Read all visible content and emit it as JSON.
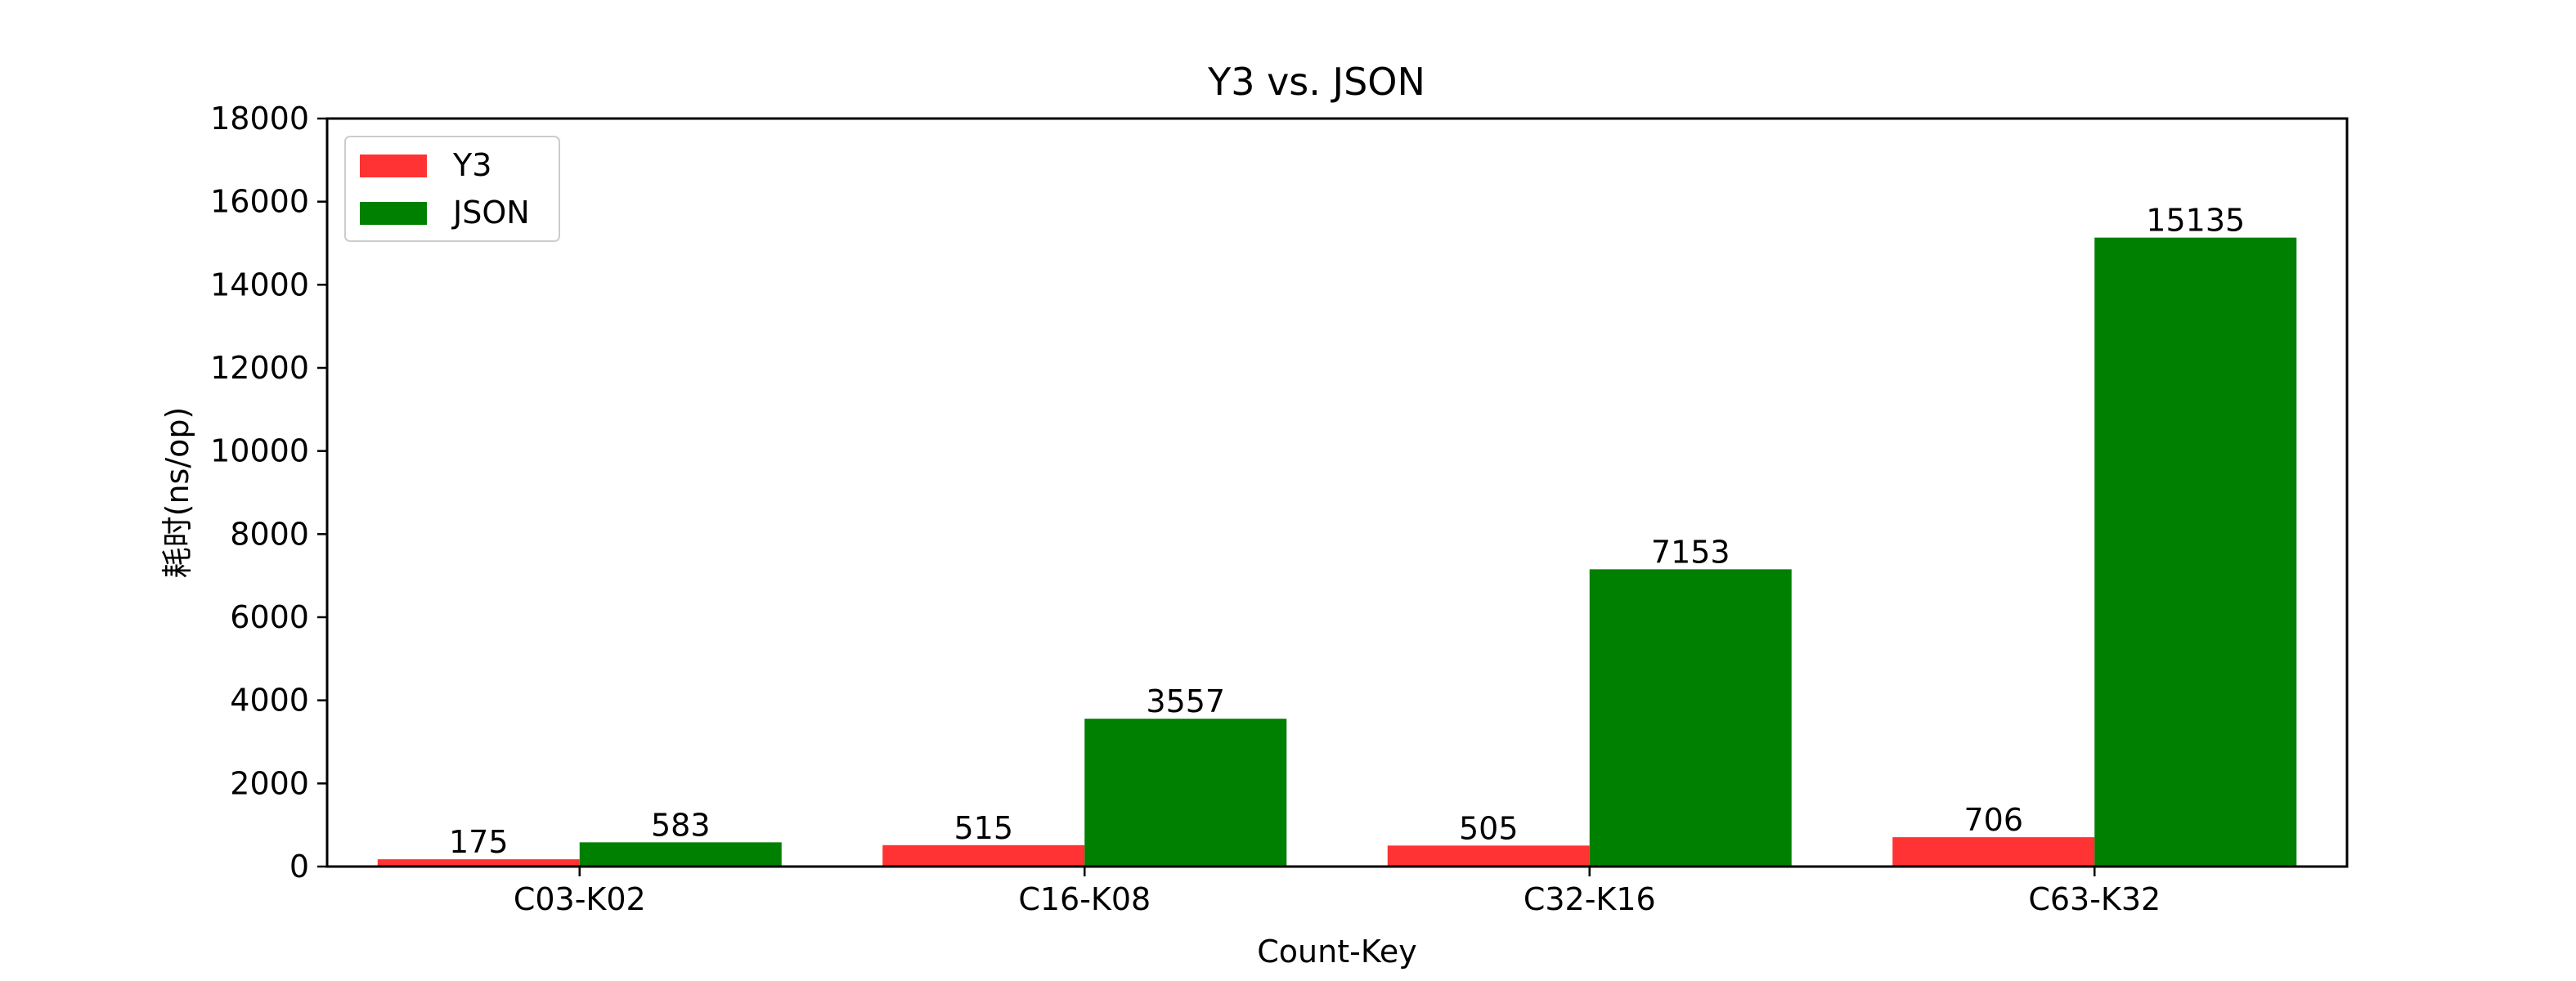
{
  "chart_data": {
    "type": "bar",
    "title": "Y3 vs. JSON",
    "xlabel": "Count-Key",
    "ylabel": "耗时(ns/op)",
    "categories": [
      "C03-K02",
      "C16-K08",
      "C32-K16",
      "C63-K32"
    ],
    "series": [
      {
        "name": "Y3",
        "color": "#ff3333",
        "values": [
          175,
          515,
          505,
          706
        ]
      },
      {
        "name": "JSON",
        "color": "#008000",
        "values": [
          583,
          3557,
          7153,
          15135
        ]
      }
    ],
    "ylim": [
      0,
      18000
    ],
    "yticks": [
      0,
      2000,
      4000,
      6000,
      8000,
      10000,
      12000,
      14000,
      16000,
      18000
    ],
    "legend": "top-left",
    "grid": false
  }
}
